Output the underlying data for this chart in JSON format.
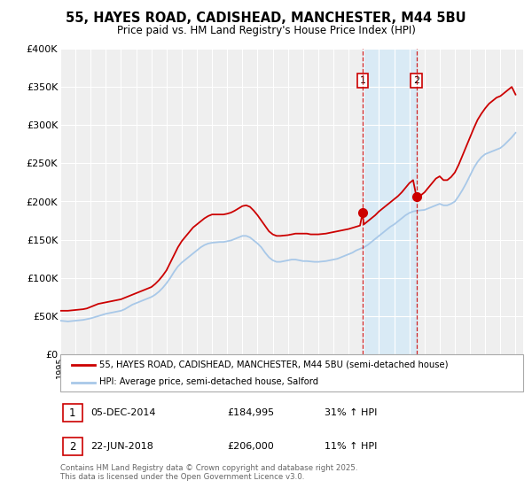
{
  "title": "55, HAYES ROAD, CADISHEAD, MANCHESTER, M44 5BU",
  "subtitle": "Price paid vs. HM Land Registry's House Price Index (HPI)",
  "ylim": [
    0,
    400000
  ],
  "yticks": [
    0,
    50000,
    100000,
    150000,
    200000,
    250000,
    300000,
    350000,
    400000
  ],
  "ytick_labels": [
    "£0",
    "£50K",
    "£100K",
    "£150K",
    "£200K",
    "£250K",
    "£300K",
    "£350K",
    "£400K"
  ],
  "xlim_start": 1995.0,
  "xlim_end": 2025.5,
  "background_color": "#ffffff",
  "plot_bg_color": "#efefef",
  "grid_color": "#ffffff",
  "red_color": "#cc0000",
  "blue_color": "#a8c8e8",
  "marker1_date": 2014.92,
  "marker1_price": 184995,
  "marker2_date": 2018.47,
  "marker2_price": 206000,
  "vline1_x": 2014.92,
  "vline2_x": 2018.47,
  "shade_color": "#d0e8f8",
  "legend_label_red": "55, HAYES ROAD, CADISHEAD, MANCHESTER, M44 5BU (semi-detached house)",
  "legend_label_blue": "HPI: Average price, semi-detached house, Salford",
  "sale1_label": "1",
  "sale1_date_str": "05-DEC-2014",
  "sale1_price_str": "£184,995",
  "sale1_hpi_str": "31% ↑ HPI",
  "sale2_label": "2",
  "sale2_date_str": "22-JUN-2018",
  "sale2_price_str": "£206,000",
  "sale2_hpi_str": "11% ↑ HPI",
  "footer": "Contains HM Land Registry data © Crown copyright and database right 2025.\nThis data is licensed under the Open Government Licence v3.0.",
  "hpi_years": [
    1995.0,
    1995.25,
    1995.5,
    1995.75,
    1996.0,
    1996.25,
    1996.5,
    1996.75,
    1997.0,
    1997.25,
    1997.5,
    1997.75,
    1998.0,
    1998.25,
    1998.5,
    1998.75,
    1999.0,
    1999.25,
    1999.5,
    1999.75,
    2000.0,
    2000.25,
    2000.5,
    2000.75,
    2001.0,
    2001.25,
    2001.5,
    2001.75,
    2002.0,
    2002.25,
    2002.5,
    2002.75,
    2003.0,
    2003.25,
    2003.5,
    2003.75,
    2004.0,
    2004.25,
    2004.5,
    2004.75,
    2005.0,
    2005.25,
    2005.5,
    2005.75,
    2006.0,
    2006.25,
    2006.5,
    2006.75,
    2007.0,
    2007.25,
    2007.5,
    2007.75,
    2008.0,
    2008.25,
    2008.5,
    2008.75,
    2009.0,
    2009.25,
    2009.5,
    2009.75,
    2010.0,
    2010.25,
    2010.5,
    2010.75,
    2011.0,
    2011.25,
    2011.5,
    2011.75,
    2012.0,
    2012.25,
    2012.5,
    2012.75,
    2013.0,
    2013.25,
    2013.5,
    2013.75,
    2014.0,
    2014.25,
    2014.5,
    2014.75,
    2015.0,
    2015.25,
    2015.5,
    2015.75,
    2016.0,
    2016.25,
    2016.5,
    2016.75,
    2017.0,
    2017.25,
    2017.5,
    2017.75,
    2018.0,
    2018.25,
    2018.5,
    2018.75,
    2019.0,
    2019.25,
    2019.5,
    2019.75,
    2020.0,
    2020.25,
    2020.5,
    2020.75,
    2021.0,
    2021.25,
    2021.5,
    2021.75,
    2022.0,
    2022.25,
    2022.5,
    2022.75,
    2023.0,
    2023.25,
    2023.5,
    2023.75,
    2024.0,
    2024.25,
    2024.5,
    2024.75,
    2025.0
  ],
  "hpi_values": [
    44000,
    43500,
    43000,
    43500,
    44000,
    44500,
    45000,
    46000,
    47000,
    48500,
    50000,
    51500,
    53000,
    54000,
    55000,
    56000,
    57000,
    59000,
    62000,
    65000,
    67000,
    69000,
    71000,
    73000,
    75000,
    78000,
    82000,
    87000,
    93000,
    100000,
    108000,
    115000,
    120000,
    124000,
    128000,
    132000,
    136000,
    140000,
    143000,
    145000,
    146000,
    146500,
    147000,
    147000,
    148000,
    149000,
    151000,
    153000,
    155000,
    155000,
    153000,
    149000,
    145000,
    140000,
    133000,
    127000,
    123000,
    121000,
    121000,
    122000,
    123000,
    124000,
    124000,
    123000,
    122000,
    122000,
    121500,
    121000,
    121000,
    121500,
    122000,
    123000,
    124000,
    125000,
    127000,
    129000,
    131000,
    133000,
    136000,
    138000,
    140000,
    143000,
    147000,
    151000,
    155000,
    159000,
    163000,
    167000,
    170000,
    174000,
    178000,
    182000,
    185000,
    187000,
    188000,
    188500,
    189000,
    191000,
    193000,
    195000,
    197000,
    195000,
    195000,
    197000,
    200000,
    207000,
    215000,
    224000,
    234000,
    244000,
    252000,
    258000,
    262000,
    264000,
    266000,
    268000,
    270000,
    274000,
    279000,
    284000,
    290000
  ],
  "price_years": [
    1995.0,
    1995.25,
    1995.5,
    1995.75,
    1996.0,
    1996.25,
    1996.5,
    1996.75,
    1997.0,
    1997.25,
    1997.5,
    1997.75,
    1998.0,
    1998.25,
    1998.5,
    1998.75,
    1999.0,
    1999.25,
    1999.5,
    1999.75,
    2000.0,
    2000.25,
    2000.5,
    2000.75,
    2001.0,
    2001.25,
    2001.5,
    2001.75,
    2002.0,
    2002.25,
    2002.5,
    2002.75,
    2003.0,
    2003.25,
    2003.5,
    2003.75,
    2004.0,
    2004.25,
    2004.5,
    2004.75,
    2005.0,
    2005.25,
    2005.5,
    2005.75,
    2006.0,
    2006.25,
    2006.5,
    2006.75,
    2007.0,
    2007.25,
    2007.5,
    2007.75,
    2008.0,
    2008.25,
    2008.5,
    2008.75,
    2009.0,
    2009.25,
    2009.5,
    2009.75,
    2010.0,
    2010.25,
    2010.5,
    2010.75,
    2011.0,
    2011.25,
    2011.5,
    2011.75,
    2012.0,
    2012.25,
    2012.5,
    2012.75,
    2013.0,
    2013.25,
    2013.5,
    2013.75,
    2014.0,
    2014.25,
    2014.5,
    2014.75,
    2014.92,
    2015.0,
    2015.25,
    2015.5,
    2015.75,
    2016.0,
    2016.25,
    2016.5,
    2016.75,
    2017.0,
    2017.25,
    2017.5,
    2017.75,
    2018.0,
    2018.25,
    2018.47,
    2018.5,
    2018.75,
    2019.0,
    2019.25,
    2019.5,
    2019.75,
    2020.0,
    2020.25,
    2020.5,
    2020.75,
    2021.0,
    2021.25,
    2021.5,
    2021.75,
    2022.0,
    2022.25,
    2022.5,
    2022.75,
    2023.0,
    2023.25,
    2023.5,
    2023.75,
    2024.0,
    2024.25,
    2024.5,
    2024.75,
    2025.0
  ],
  "price_values": [
    57000,
    57000,
    57000,
    57500,
    58000,
    58500,
    59000,
    60000,
    62000,
    64000,
    66000,
    67000,
    68000,
    69000,
    70000,
    71000,
    72000,
    74000,
    76000,
    78000,
    80000,
    82000,
    84000,
    86000,
    88000,
    92000,
    97000,
    103000,
    110000,
    120000,
    130000,
    140000,
    148000,
    154000,
    160000,
    166000,
    170000,
    174000,
    178000,
    181000,
    183000,
    183000,
    183000,
    183000,
    184000,
    185500,
    188000,
    191000,
    194000,
    195000,
    193000,
    188000,
    182000,
    175000,
    168000,
    161000,
    157000,
    155000,
    155000,
    155500,
    156000,
    157000,
    158000,
    158000,
    158000,
    158000,
    157000,
    157000,
    157000,
    157500,
    158000,
    159000,
    160000,
    161000,
    162000,
    163000,
    164000,
    165500,
    167000,
    168500,
    184995,
    170000,
    174000,
    178000,
    182000,
    187000,
    191000,
    195000,
    199000,
    203000,
    207000,
    212000,
    218000,
    224000,
    228000,
    206000,
    206000,
    208000,
    212000,
    218000,
    224000,
    230000,
    233000,
    228000,
    228000,
    232000,
    238000,
    248000,
    260000,
    272000,
    284000,
    296000,
    307000,
    315000,
    322000,
    328000,
    332000,
    336000,
    338000,
    342000,
    346000,
    350000,
    340000
  ]
}
